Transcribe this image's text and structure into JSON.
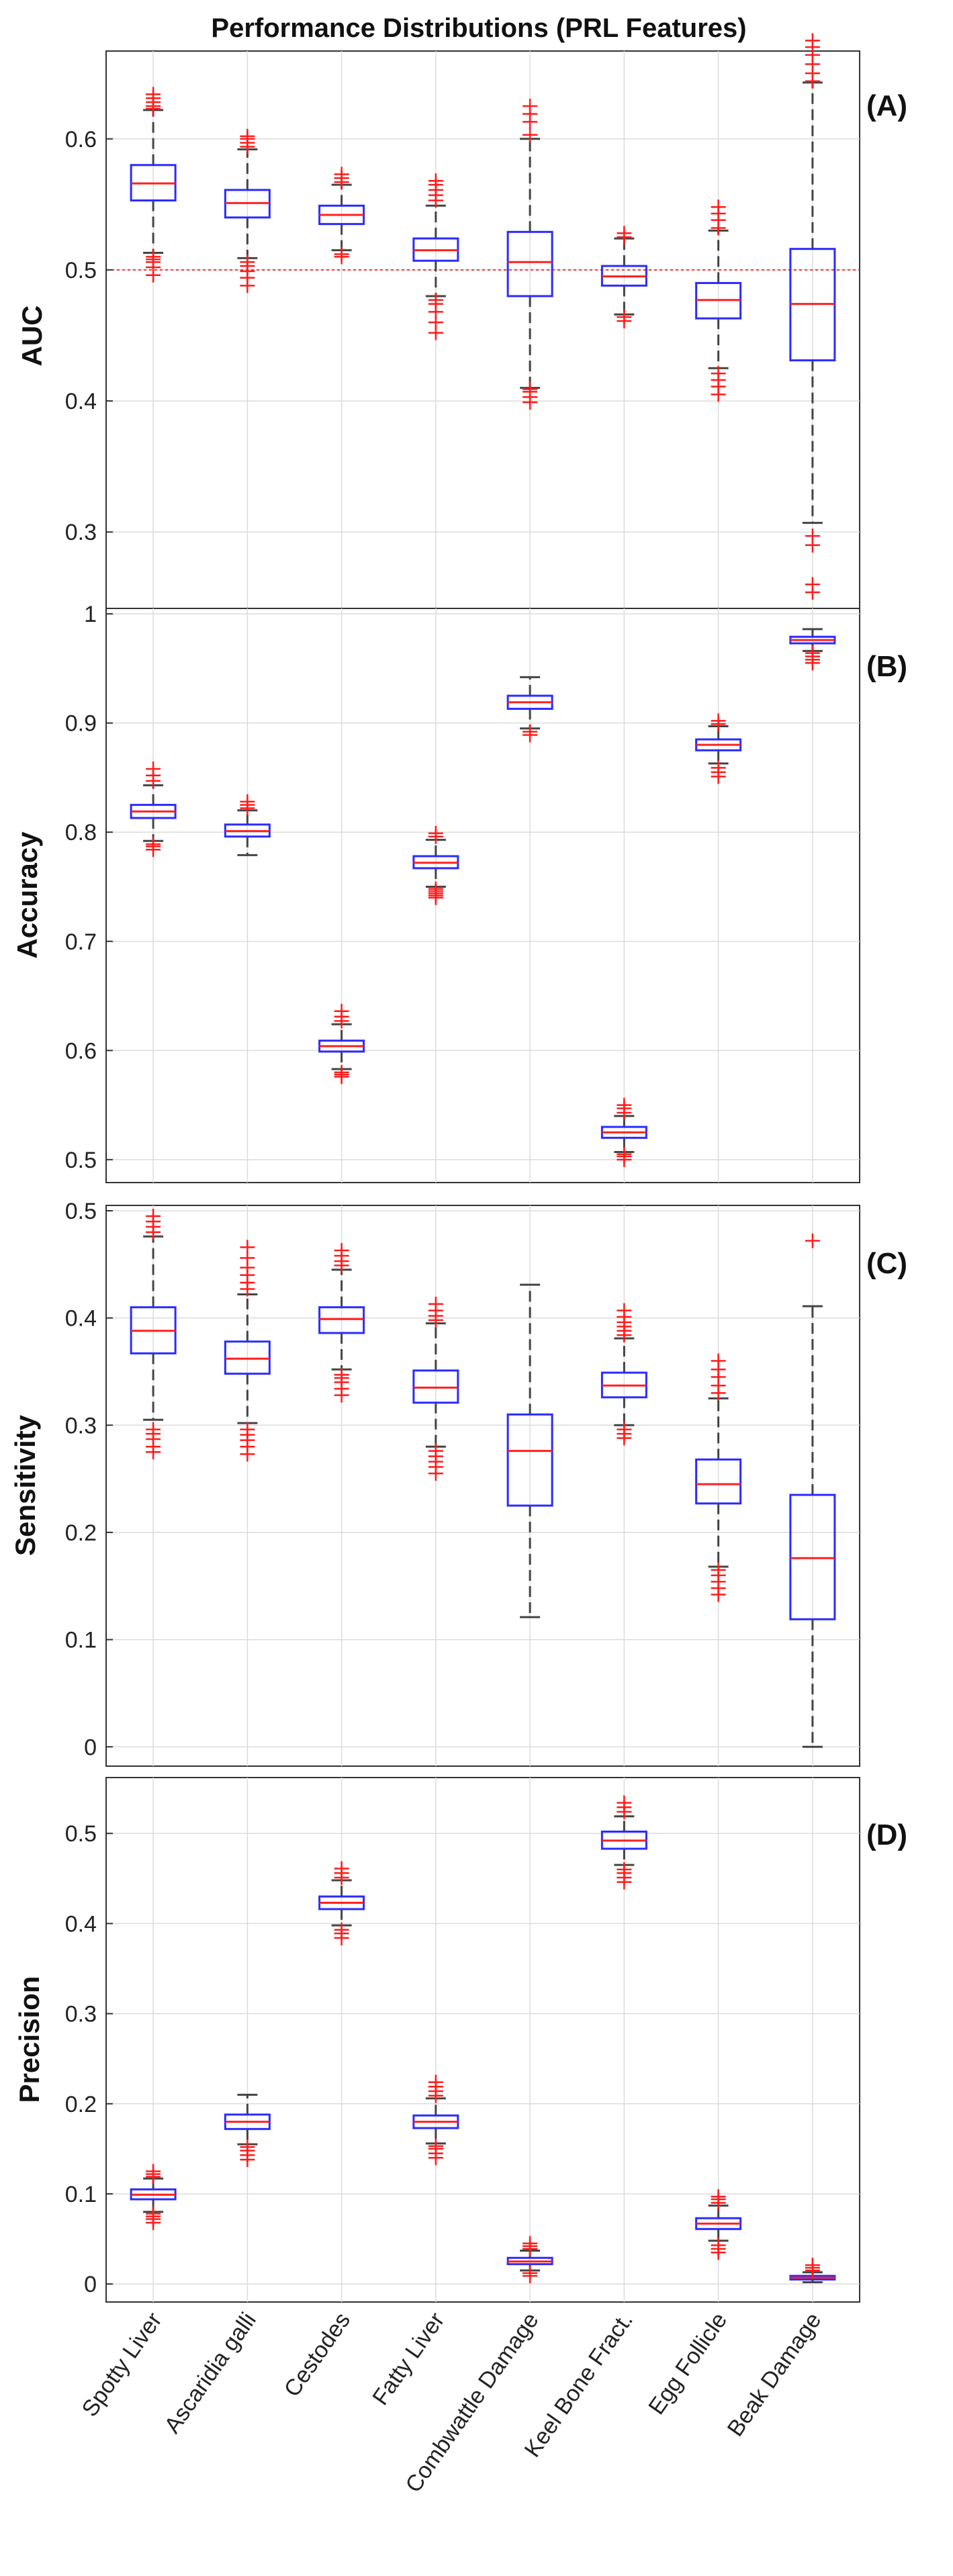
{
  "chart_data": {
    "type": "boxplot",
    "title": "Performance Distributions (PRL Features)",
    "categories": [
      "Spotty Liver",
      "Ascaridia galli",
      "Cestodes",
      "Fatty Liver",
      "Combwattle Damage",
      "Keel Bone Fract.",
      "Egg Follicle",
      "Beak Damage"
    ],
    "panels": [
      {
        "tag": "(A)",
        "ylabel": "AUC",
        "ylim": [
          0.233,
          0.667
        ],
        "yticks": [
          0.3,
          0.4,
          0.5,
          0.6
        ],
        "ytick_labels": [
          "0.3",
          "0.4",
          "0.5",
          "0.6"
        ],
        "reference_line": 0.5,
        "boxes": [
          {
            "q1": 0.553,
            "median": 0.566,
            "q3": 0.58,
            "wlo": 0.513,
            "whi": 0.622,
            "outliers": [
              0.496,
              0.502,
              0.506,
              0.508,
              0.51,
              0.623,
              0.625,
              0.628,
              0.631,
              0.634
            ]
          },
          {
            "q1": 0.54,
            "median": 0.551,
            "q3": 0.561,
            "wlo": 0.509,
            "whi": 0.592,
            "outliers": [
              0.488,
              0.494,
              0.499,
              0.503,
              0.506,
              0.594,
              0.597,
              0.6,
              0.602
            ]
          },
          {
            "q1": 0.535,
            "median": 0.542,
            "q3": 0.549,
            "wlo": 0.515,
            "whi": 0.565,
            "outliers": [
              0.51,
              0.512,
              0.567,
              0.57,
              0.573
            ]
          },
          {
            "q1": 0.507,
            "median": 0.515,
            "q3": 0.524,
            "wlo": 0.48,
            "whi": 0.549,
            "outliers": [
              0.452,
              0.46,
              0.468,
              0.474,
              0.477,
              0.553,
              0.557,
              0.561,
              0.565,
              0.568
            ]
          },
          {
            "q1": 0.48,
            "median": 0.506,
            "q3": 0.529,
            "wlo": 0.41,
            "whi": 0.6,
            "outliers": [
              0.399,
              0.403,
              0.407,
              0.409,
              0.603,
              0.613,
              0.619,
              0.625
            ]
          },
          {
            "q1": 0.488,
            "median": 0.495,
            "q3": 0.503,
            "wlo": 0.466,
            "whi": 0.524,
            "outliers": [
              0.461,
              0.464,
              0.525,
              0.528
            ]
          },
          {
            "q1": 0.463,
            "median": 0.477,
            "q3": 0.49,
            "wlo": 0.425,
            "whi": 0.53,
            "outliers": [
              0.405,
              0.411,
              0.416,
              0.421,
              0.532,
              0.538,
              0.543,
              0.548
            ]
          },
          {
            "q1": 0.431,
            "median": 0.474,
            "q3": 0.516,
            "wlo": 0.307,
            "whi": 0.643,
            "outliers": [
              0.254,
              0.26,
              0.29,
              0.297,
              0.644,
              0.65,
              0.657,
              0.664,
              0.67,
              0.675
            ]
          }
        ]
      },
      {
        "tag": "(B)",
        "ylabel": "Accuracy",
        "ylim": [
          0.479,
          1.005
        ],
        "yticks": [
          0.5,
          0.6,
          0.7,
          0.8,
          0.9,
          1.0
        ],
        "ytick_labels": [
          "0.5",
          "0.6",
          "0.7",
          "0.8",
          "0.9",
          "1"
        ],
        "reference_line": null,
        "boxes": [
          {
            "q1": 0.813,
            "median": 0.819,
            "q3": 0.825,
            "wlo": 0.792,
            "whi": 0.843,
            "outliers": [
              0.784,
              0.787,
              0.789,
              0.847,
              0.852,
              0.858
            ]
          },
          {
            "q1": 0.796,
            "median": 0.801,
            "q3": 0.807,
            "wlo": 0.779,
            "whi": 0.82,
            "outliers": [
              0.822,
              0.825,
              0.828
            ]
          },
          {
            "q1": 0.599,
            "median": 0.604,
            "q3": 0.609,
            "wlo": 0.583,
            "whi": 0.624,
            "outliers": [
              0.576,
              0.578,
              0.58,
              0.627,
              0.631,
              0.636
            ]
          },
          {
            "q1": 0.767,
            "median": 0.772,
            "q3": 0.778,
            "wlo": 0.75,
            "whi": 0.793,
            "outliers": [
              0.74,
              0.742,
              0.744,
              0.746,
              0.748,
              0.796,
              0.799
            ]
          },
          {
            "q1": 0.913,
            "median": 0.919,
            "q3": 0.925,
            "wlo": 0.895,
            "whi": 0.942,
            "outliers": [
              0.889,
              0.892
            ]
          },
          {
            "q1": 0.52,
            "median": 0.525,
            "q3": 0.53,
            "wlo": 0.507,
            "whi": 0.54,
            "outliers": [
              0.5,
              0.503,
              0.505,
              0.543,
              0.547,
              0.55
            ]
          },
          {
            "q1": 0.875,
            "median": 0.88,
            "q3": 0.885,
            "wlo": 0.863,
            "whi": 0.897,
            "outliers": [
              0.851,
              0.855,
              0.859,
              0.899,
              0.902
            ]
          },
          {
            "q1": 0.973,
            "median": 0.976,
            "q3": 0.979,
            "wlo": 0.966,
            "whi": 0.986,
            "outliers": [
              0.955,
              0.958,
              0.961,
              0.964
            ]
          }
        ]
      },
      {
        "tag": "(C)",
        "ylabel": "Sensitivity",
        "ylim": [
          -0.018,
          0.505
        ],
        "yticks": [
          0.0,
          0.1,
          0.2,
          0.3,
          0.4,
          0.5
        ],
        "ytick_labels": [
          "0",
          "0.1",
          "0.2",
          "0.3",
          "0.4",
          "0.5"
        ],
        "reference_line": null,
        "boxes": [
          {
            "q1": 0.367,
            "median": 0.388,
            "q3": 0.41,
            "wlo": 0.305,
            "whi": 0.476,
            "outliers": [
              0.275,
              0.28,
              0.287,
              0.292,
              0.296,
              0.48,
              0.485,
              0.49,
              0.495
            ]
          },
          {
            "q1": 0.348,
            "median": 0.362,
            "q3": 0.378,
            "wlo": 0.302,
            "whi": 0.422,
            "outliers": [
              0.273,
              0.28,
              0.286,
              0.291,
              0.296,
              0.427,
              0.433,
              0.44,
              0.447,
              0.456,
              0.466
            ]
          },
          {
            "q1": 0.386,
            "median": 0.399,
            "q3": 0.41,
            "wlo": 0.352,
            "whi": 0.445,
            "outliers": [
              0.328,
              0.334,
              0.34,
              0.344,
              0.347,
              0.449,
              0.453,
              0.458,
              0.463
            ]
          },
          {
            "q1": 0.321,
            "median": 0.335,
            "q3": 0.351,
            "wlo": 0.28,
            "whi": 0.395,
            "outliers": [
              0.255,
              0.261,
              0.266,
              0.271,
              0.276,
              0.398,
              0.402,
              0.407,
              0.413
            ]
          },
          {
            "q1": 0.225,
            "median": 0.276,
            "q3": 0.31,
            "wlo": 0.121,
            "whi": 0.431,
            "outliers": []
          },
          {
            "q1": 0.326,
            "median": 0.337,
            "q3": 0.349,
            "wlo": 0.3,
            "whi": 0.381,
            "outliers": [
              0.288,
              0.292,
              0.296,
              0.384,
              0.388,
              0.392,
              0.396,
              0.401,
              0.407
            ]
          },
          {
            "q1": 0.227,
            "median": 0.245,
            "q3": 0.268,
            "wlo": 0.168,
            "whi": 0.325,
            "outliers": [
              0.142,
              0.148,
              0.154,
              0.16,
              0.165,
              0.33,
              0.337,
              0.345,
              0.352,
              0.36
            ]
          },
          {
            "q1": 0.119,
            "median": 0.176,
            "q3": 0.235,
            "wlo": 0.0,
            "whi": 0.411,
            "outliers": [
              0.472
            ]
          }
        ]
      },
      {
        "tag": "(D)",
        "ylabel": "Precision",
        "ylim": [
          -0.02,
          0.562
        ],
        "yticks": [
          0.0,
          0.1,
          0.2,
          0.3,
          0.4,
          0.5
        ],
        "ytick_labels": [
          "0",
          "0.1",
          "0.2",
          "0.3",
          "0.4",
          "0.5"
        ],
        "reference_line": null,
        "boxes": [
          {
            "q1": 0.094,
            "median": 0.099,
            "q3": 0.105,
            "wlo": 0.08,
            "whi": 0.117,
            "outliers": [
              0.068,
              0.072,
              0.075,
              0.078,
              0.119,
              0.122,
              0.125
            ]
          },
          {
            "q1": 0.172,
            "median": 0.18,
            "q3": 0.188,
            "wlo": 0.155,
            "whi": 0.21,
            "outliers": [
              0.138,
              0.143,
              0.148,
              0.152
            ]
          },
          {
            "q1": 0.416,
            "median": 0.423,
            "q3": 0.43,
            "wlo": 0.398,
            "whi": 0.448,
            "outliers": [
              0.384,
              0.389,
              0.393,
              0.451,
              0.456,
              0.461
            ]
          },
          {
            "q1": 0.173,
            "median": 0.18,
            "q3": 0.187,
            "wlo": 0.156,
            "whi": 0.206,
            "outliers": [
              0.14,
              0.145,
              0.15,
              0.153,
              0.209,
              0.214,
              0.219,
              0.224
            ]
          },
          {
            "q1": 0.022,
            "median": 0.025,
            "q3": 0.029,
            "wlo": 0.015,
            "whi": 0.037,
            "outliers": [
              0.009,
              0.012,
              0.039,
              0.042,
              0.045
            ]
          },
          {
            "q1": 0.483,
            "median": 0.492,
            "q3": 0.502,
            "wlo": 0.465,
            "whi": 0.519,
            "outliers": [
              0.446,
              0.451,
              0.456,
              0.46,
              0.524,
              0.529,
              0.534
            ]
          },
          {
            "q1": 0.061,
            "median": 0.067,
            "q3": 0.073,
            "wlo": 0.048,
            "whi": 0.087,
            "outliers": [
              0.035,
              0.039,
              0.043,
              0.09,
              0.094,
              0.097
            ]
          },
          {
            "q1": 0.005,
            "median": 0.007,
            "q3": 0.009,
            "wlo": 0.002,
            "whi": 0.013,
            "outliers": [
              0.015,
              0.018,
              0.021
            ]
          }
        ]
      }
    ]
  }
}
